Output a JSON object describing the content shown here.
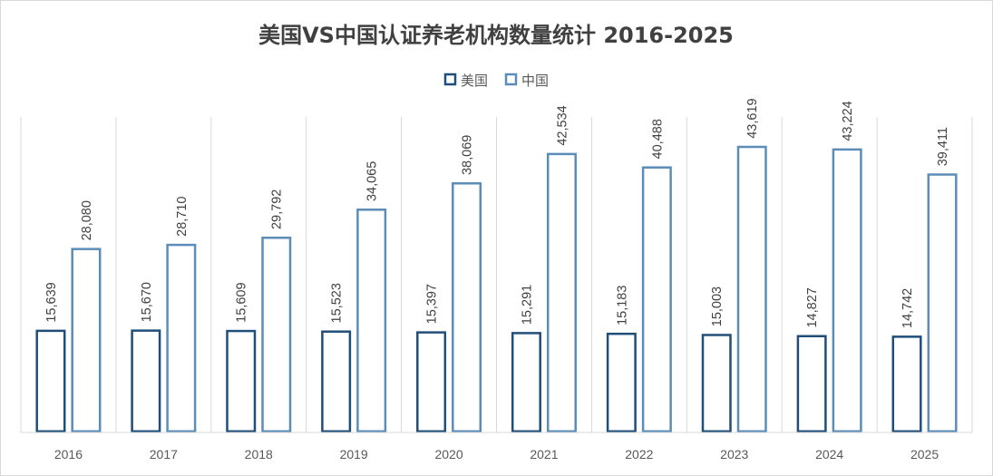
{
  "chart_data": {
    "type": "bar",
    "title": "美国VS中国认证养老机构数量统计 2016-2025",
    "categories": [
      "2016",
      "2017",
      "2018",
      "2019",
      "2020",
      "2021",
      "2022",
      "2023",
      "2024",
      "2025"
    ],
    "series": [
      {
        "name": "美国",
        "color": "#1f4e79",
        "values": [
          15639,
          15670,
          15609,
          15523,
          15397,
          15291,
          15183,
          15003,
          14827,
          14742
        ],
        "labels": [
          "15,639",
          "15,670",
          "15,609",
          "15,523",
          "15,397",
          "15,291",
          "15,183",
          "15,003",
          "14,827",
          "14,742"
        ]
      },
      {
        "name": "中国",
        "color": "#5b8db8",
        "values": [
          28080,
          28710,
          29792,
          34065,
          38069,
          42534,
          40488,
          43619,
          43224,
          39411
        ],
        "labels": [
          "28,080",
          "28,710",
          "29,792",
          "34,065",
          "38,069",
          "42,534",
          "40,488",
          "43,619",
          "43,224",
          "39,411"
        ]
      }
    ],
    "ylim": [
      0,
      48000
    ],
    "xlabel": "",
    "ylabel": "",
    "grid": "vertical category separators",
    "legend_position": "top-center",
    "bar_style": "outlined"
  }
}
